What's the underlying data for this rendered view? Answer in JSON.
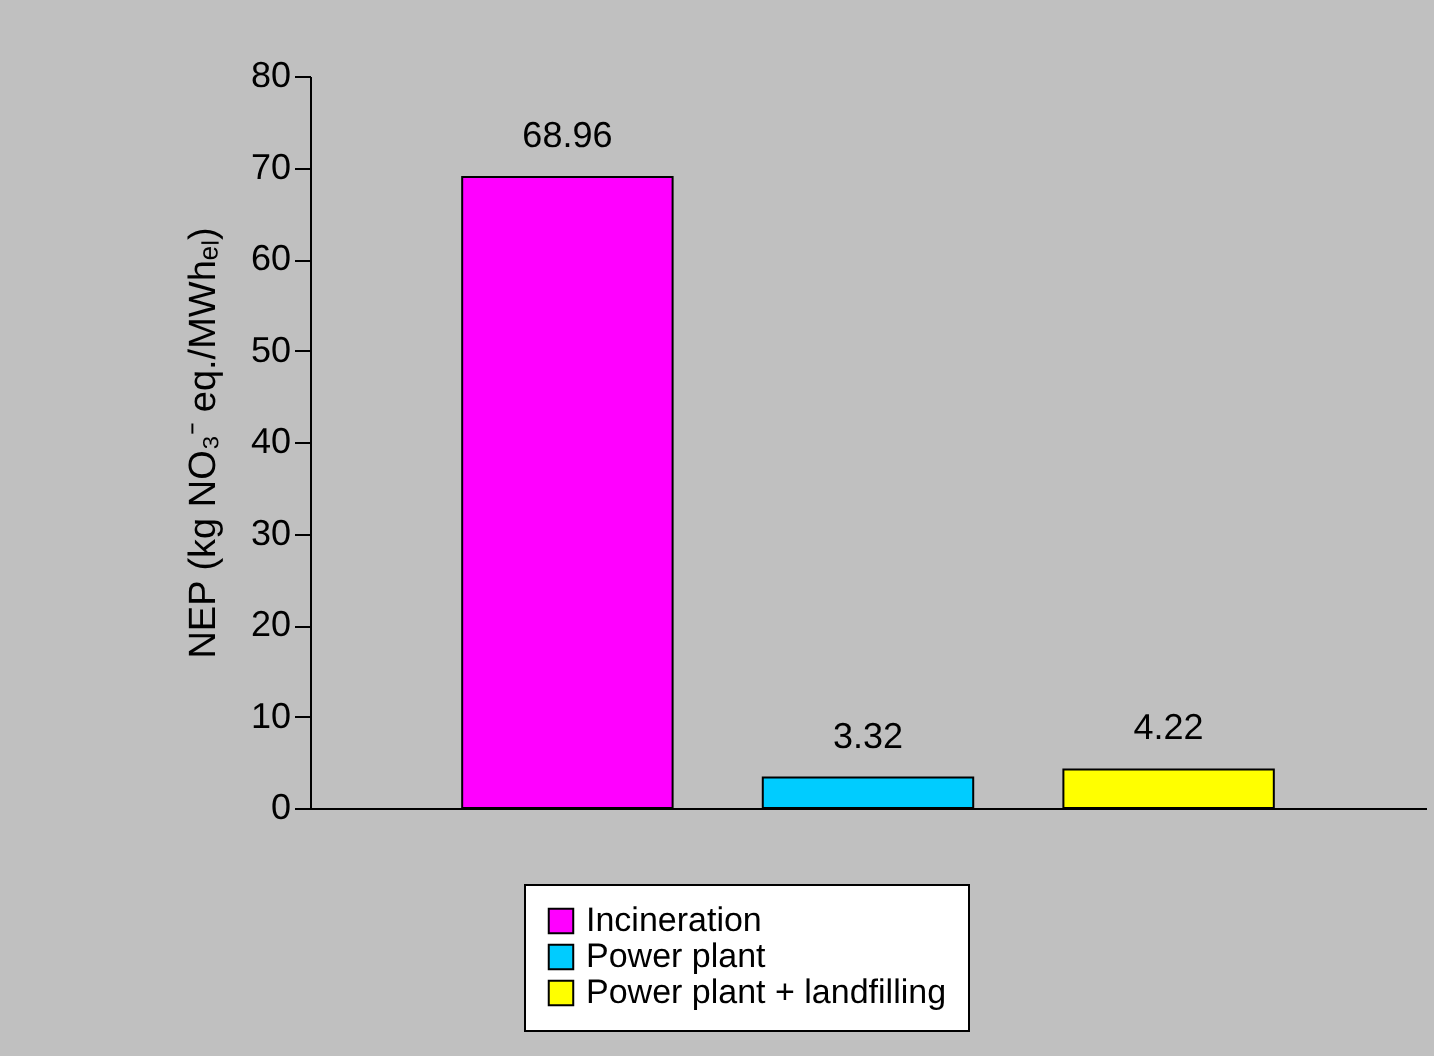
{
  "chart_data": {
    "type": "bar",
    "ylabel": "NEP (kg NO₃⁻ eq./MWhₑₗ)",
    "categories": [
      null
    ],
    "series": [
      {
        "name": "Incineration",
        "color": "#ff00ff",
        "values": [
          68.96
        ]
      },
      {
        "name": "Power plant",
        "color": "#00ccff",
        "values": [
          3.32
        ]
      },
      {
        "name": "Power plant + landfilling",
        "color": "#ffff00",
        "values": [
          4.22
        ]
      }
    ],
    "ylim": [
      0,
      80
    ],
    "yticks": [
      0,
      10,
      20,
      30,
      40,
      50,
      60,
      70,
      80
    ],
    "grid": false,
    "legend": "bottom",
    "data_labels": true,
    "tick_labels": "y"
  }
}
